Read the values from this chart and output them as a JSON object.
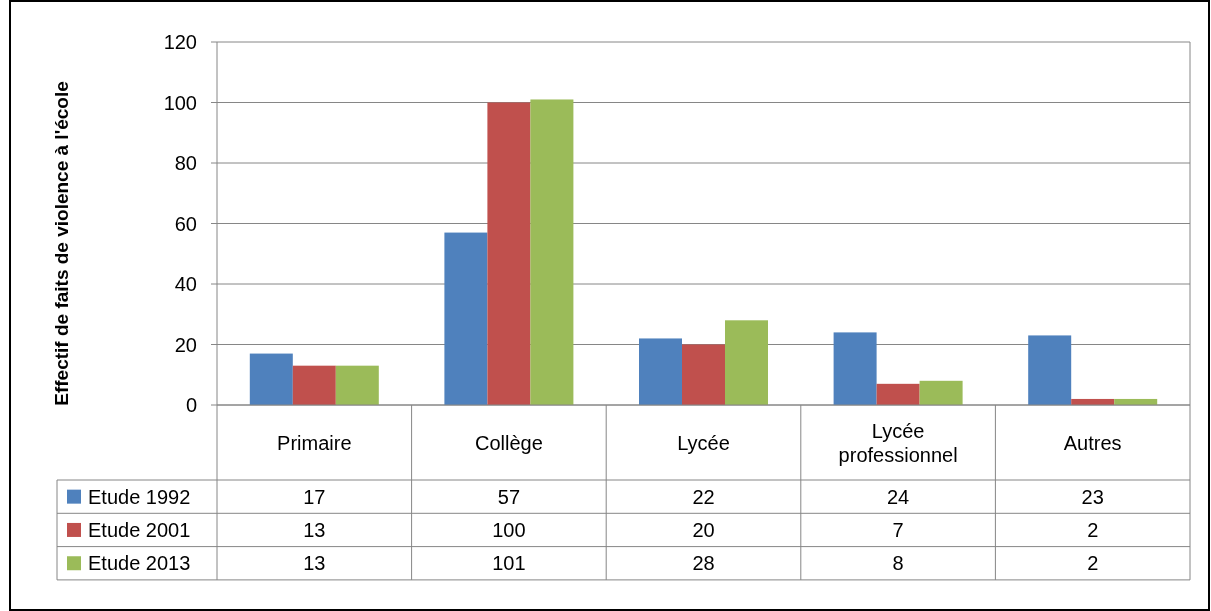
{
  "chart_data": {
    "type": "bar",
    "ylabel": "Effectif de faits de violence à l'école",
    "categories": [
      "Primaire",
      "Collège",
      "Lycée",
      "Lycée professionnel",
      "Autres"
    ],
    "series": [
      {
        "name": "Etude 1992",
        "color": "#4f81bd",
        "values": [
          17,
          57,
          22,
          24,
          23
        ]
      },
      {
        "name": "Etude 2001",
        "color": "#c0504d",
        "values": [
          13,
          100,
          20,
          7,
          2
        ]
      },
      {
        "name": "Etude 2013",
        "color": "#9bbb59",
        "values": [
          13,
          101,
          28,
          8,
          2
        ]
      }
    ],
    "ylim": [
      0,
      120
    ],
    "yticks": [
      0,
      20,
      40,
      60,
      80,
      100,
      120
    ],
    "grid": "y",
    "legend": "bottom",
    "data_labels": true
  }
}
